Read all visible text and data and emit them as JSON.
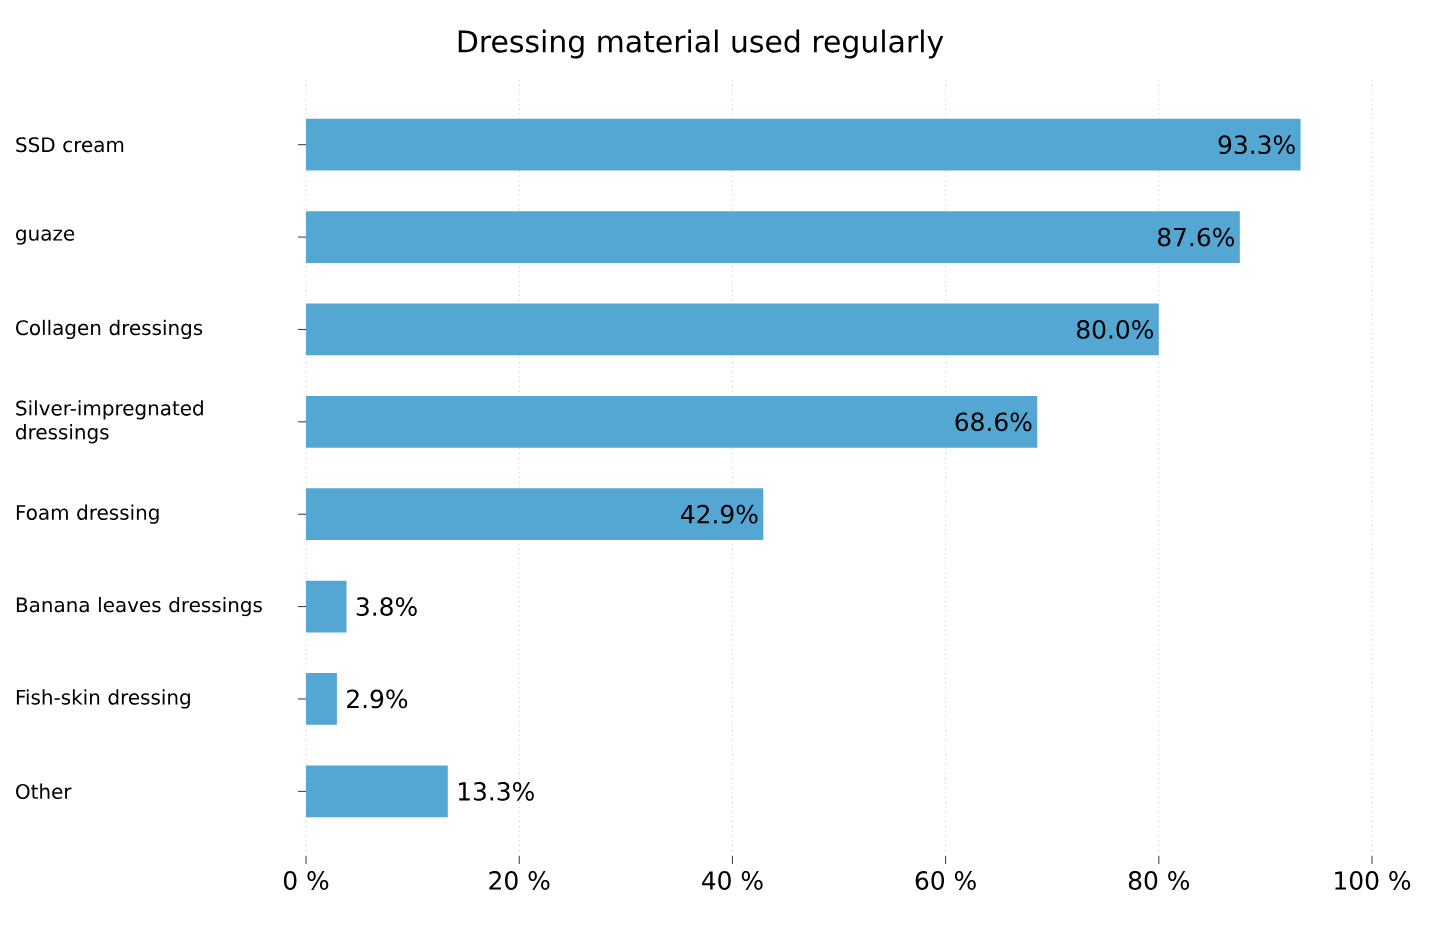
{
  "chart_data": {
    "type": "bar",
    "orientation": "horizontal",
    "title": "Dressing material used regularly",
    "categories": [
      "SSD cream",
      "guaze",
      "Collagen dressings",
      "Silver-impregnated dressings",
      "Foam dressing",
      "Banana leaves dressings",
      "Fish-skin dressing",
      "Other"
    ],
    "values": [
      93.3,
      87.6,
      80.0,
      68.6,
      42.9,
      3.8,
      2.9,
      13.3
    ],
    "value_labels": [
      "93.3%",
      "87.6%",
      "80.0%",
      "68.6%",
      "42.9%",
      "3.8%",
      "2.9%",
      "13.3%"
    ],
    "color": "#55a7d3",
    "xlim": [
      0,
      100
    ],
    "xticks": [
      {
        "value": 0,
        "label": "0 %"
      },
      {
        "value": 20,
        "label": "20 %"
      },
      {
        "value": 40,
        "label": "40 %"
      },
      {
        "value": 60,
        "label": "60 %"
      },
      {
        "value": 80,
        "label": "80 %"
      },
      {
        "value": 100,
        "label": "100 %"
      }
    ],
    "grid": "x"
  }
}
